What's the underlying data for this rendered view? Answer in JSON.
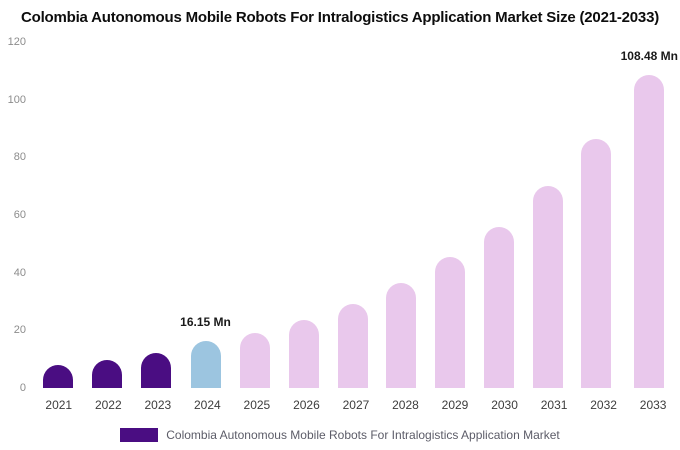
{
  "legend": {
    "label": "Colombia Autonomous Mobile Robots For Intralogistics Application Market",
    "swatch_color": "#4a0d82"
  },
  "chart_data": {
    "type": "bar",
    "title": "Colombia Autonomous Mobile Robots For Intralogistics Application Market Size (2021-2033)",
    "xlabel": "",
    "ylabel": "",
    "unit": "Mn",
    "categories": [
      "2021",
      "2022",
      "2023",
      "2024",
      "2025",
      "2026",
      "2027",
      "2028",
      "2029",
      "2030",
      "2031",
      "2032",
      "2033"
    ],
    "values": [
      8,
      9.7,
      12.1,
      16.15,
      19,
      23.5,
      29,
      36.5,
      45.5,
      56,
      70,
      86.5,
      108.48
    ],
    "ylim": [
      0,
      120
    ],
    "yticks": [
      0,
      20,
      40,
      60,
      80,
      100,
      120
    ],
    "grid": false,
    "legend_position": "bottom",
    "bar_colors": [
      "#4a0d82",
      "#4a0d82",
      "#4a0d82",
      "#9cc5e0",
      "#e9c8ec",
      "#e9c8ec",
      "#e9c8ec",
      "#e9c8ec",
      "#e9c8ec",
      "#e9c8ec",
      "#e9c8ec",
      "#e9c8ec",
      "#e9c8ec"
    ],
    "annotations": [
      {
        "category": "2024",
        "label": "16.15 Mn"
      },
      {
        "category": "2033",
        "label": "108.48 Mn"
      }
    ]
  }
}
